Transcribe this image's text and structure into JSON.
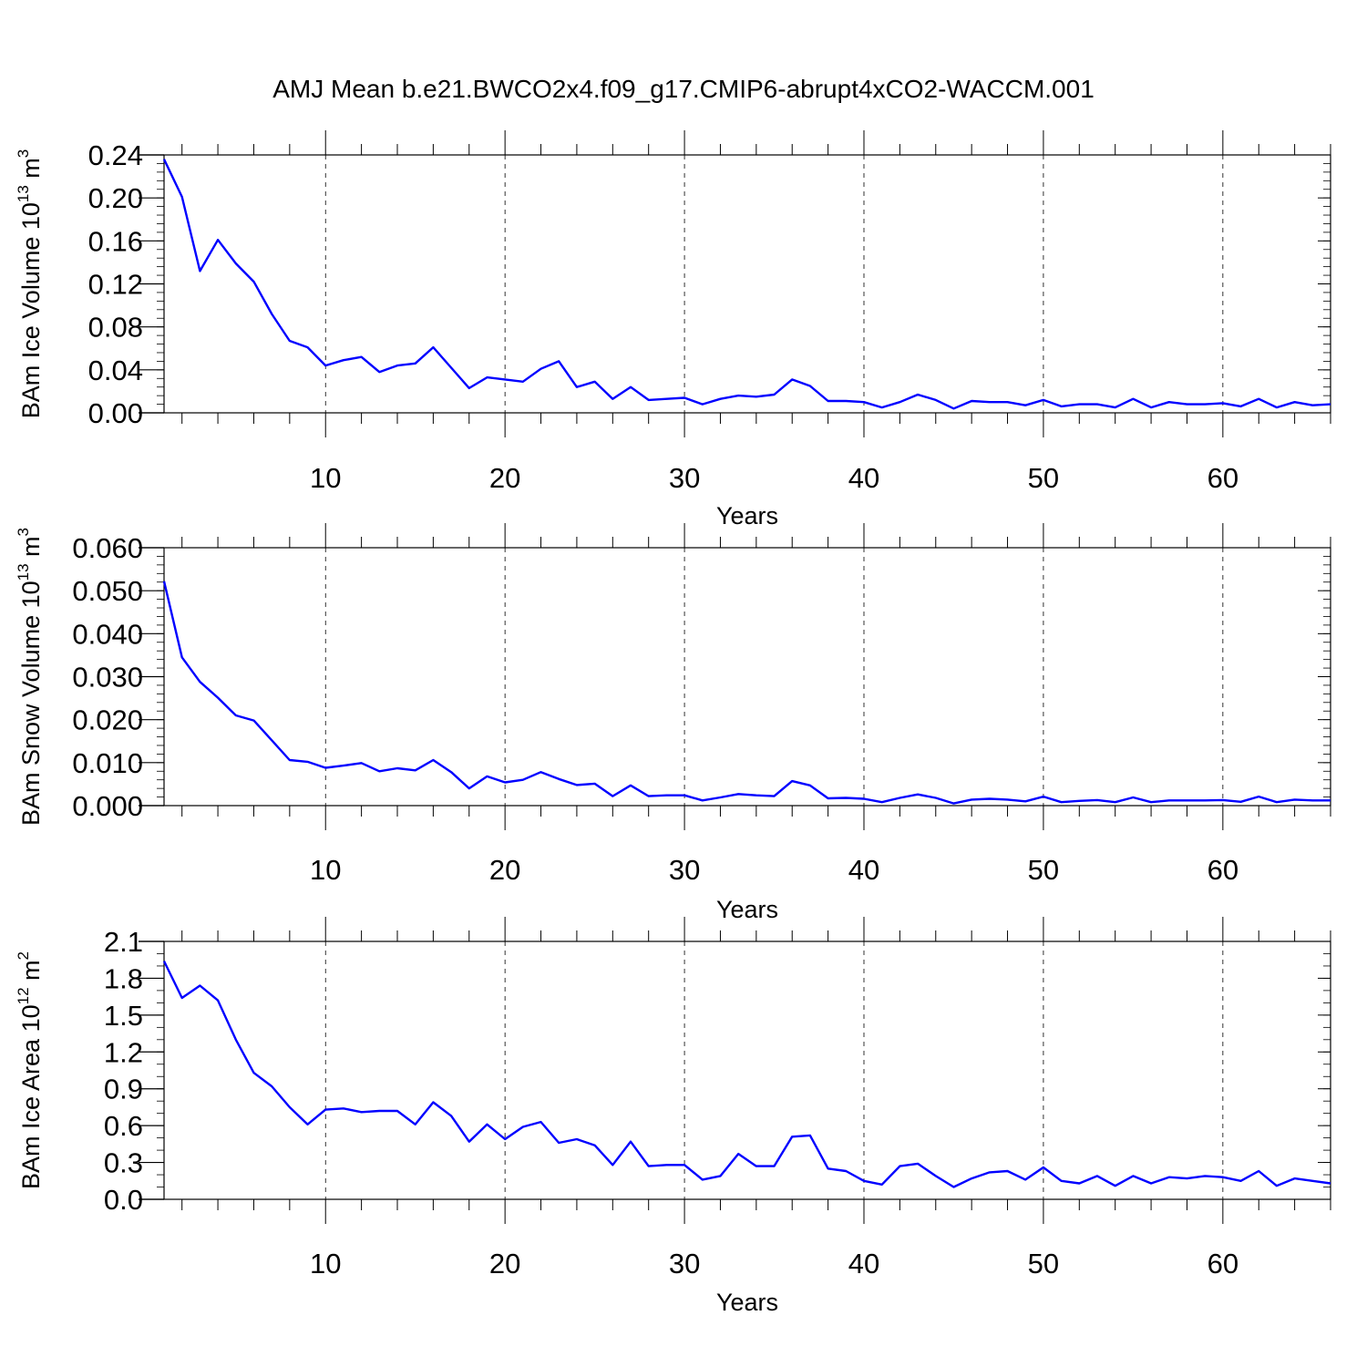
{
  "title": "AMJ Mean b.e21.BWCO2x4.f09_g17.CMIP6-abrupt4xCO2-WACCM.001",
  "chart_data": [
    {
      "type": "line",
      "title": "AMJ Mean b.e21.BWCO2x4.f09_g17.CMIP6-abrupt4xCO2-WACCM.001",
      "xlabel": "Years",
      "ylabel": {
        "prefix": "BAm Ice Volume 10",
        "exp": "13",
        "unit": " m",
        "unit_exp": "3"
      },
      "xlim": [
        1,
        66
      ],
      "ylim": [
        0,
        0.24
      ],
      "x_major_ticks": [
        10,
        20,
        30,
        40,
        50,
        60
      ],
      "x_tick_labels": [
        "10",
        "20",
        "30",
        "40",
        "50",
        "60"
      ],
      "y_ticks": [
        0,
        0.04,
        0.08,
        0.12,
        0.16,
        0.2,
        0.24
      ],
      "y_tick_labels": [
        "0.00",
        "0.04",
        "0.08",
        "0.12",
        "0.16",
        "0.20",
        "0.24"
      ],
      "y_minor_step": 0.008,
      "color": "#0000ff",
      "series": [
        {
          "name": "BAm Ice Volume",
          "values": [
            0.236,
            0.201,
            0.132,
            0.161,
            0.139,
            0.122,
            0.092,
            0.067,
            0.061,
            0.044,
            0.049,
            0.052,
            0.038,
            0.044,
            0.046,
            0.061,
            0.042,
            0.023,
            0.033,
            0.031,
            0.029,
            0.041,
            0.048,
            0.024,
            0.029,
            0.013,
            0.024,
            0.012,
            0.013,
            0.014,
            0.008,
            0.013,
            0.016,
            0.015,
            0.017,
            0.031,
            0.025,
            0.011,
            0.011,
            0.01,
            0.005,
            0.01,
            0.017,
            0.012,
            0.004,
            0.011,
            0.01,
            0.01,
            0.007,
            0.012,
            0.006,
            0.008,
            0.008,
            0.005,
            0.013,
            0.005,
            0.01,
            0.008,
            0.008,
            0.009,
            0.006,
            0.013,
            0.005,
            0.01,
            0.007,
            0.008
          ]
        }
      ]
    },
    {
      "type": "line",
      "xlabel": "Years",
      "ylabel": {
        "prefix": "BAm Snow Volume 10",
        "exp": "13",
        "unit": " m",
        "unit_exp": "3"
      },
      "xlim": [
        1,
        66
      ],
      "ylim": [
        0,
        0.06
      ],
      "x_major_ticks": [
        10,
        20,
        30,
        40,
        50,
        60
      ],
      "x_tick_labels": [
        "10",
        "20",
        "30",
        "40",
        "50",
        "60"
      ],
      "y_ticks": [
        0,
        0.01,
        0.02,
        0.03,
        0.04,
        0.05,
        0.06
      ],
      "y_tick_labels": [
        "0.000",
        "0.010",
        "0.020",
        "0.030",
        "0.040",
        "0.050",
        "0.060"
      ],
      "y_minor_step": 0.002,
      "color": "#0000ff",
      "series": [
        {
          "name": "BAm Snow Volume",
          "values": [
            0.0522,
            0.0345,
            0.0288,
            0.0251,
            0.021,
            0.0198,
            0.0152,
            0.0106,
            0.0102,
            0.0088,
            0.0093,
            0.0099,
            0.008,
            0.0087,
            0.0082,
            0.0106,
            0.0078,
            0.004,
            0.0068,
            0.0054,
            0.006,
            0.0078,
            0.0062,
            0.0048,
            0.0051,
            0.0022,
            0.0047,
            0.0022,
            0.0024,
            0.0024,
            0.0012,
            0.0019,
            0.0027,
            0.0024,
            0.0022,
            0.0057,
            0.0047,
            0.0017,
            0.0018,
            0.0016,
            0.0008,
            0.0018,
            0.0026,
            0.0018,
            0.0005,
            0.0014,
            0.0016,
            0.0014,
            0.001,
            0.0021,
            0.0008,
            0.0011,
            0.0013,
            0.0008,
            0.0019,
            0.0008,
            0.0012,
            0.0012,
            0.0012,
            0.0013,
            0.0009,
            0.0021,
            0.0008,
            0.0014,
            0.0012,
            0.0012
          ]
        }
      ]
    },
    {
      "type": "line",
      "xlabel": "Years",
      "ylabel": {
        "prefix": "BAm Ice Area 10",
        "exp": "12",
        "unit": " m",
        "unit_exp": "2"
      },
      "xlim": [
        1,
        66
      ],
      "ylim": [
        0,
        2.1
      ],
      "x_major_ticks": [
        10,
        20,
        30,
        40,
        50,
        60
      ],
      "x_tick_labels": [
        "10",
        "20",
        "30",
        "40",
        "50",
        "60"
      ],
      "y_ticks": [
        0,
        0.3,
        0.6,
        0.9,
        1.2,
        1.5,
        1.8,
        2.1
      ],
      "y_tick_labels": [
        "0.0",
        "0.3",
        "0.6",
        "0.9",
        "1.2",
        "1.5",
        "1.8",
        "2.1"
      ],
      "y_minor_step": 0.1,
      "color": "#0000ff",
      "series": [
        {
          "name": "BAm Ice Area",
          "values": [
            1.94,
            1.64,
            1.74,
            1.62,
            1.3,
            1.03,
            0.92,
            0.75,
            0.61,
            0.73,
            0.74,
            0.71,
            0.72,
            0.72,
            0.61,
            0.79,
            0.68,
            0.47,
            0.61,
            0.49,
            0.59,
            0.63,
            0.46,
            0.49,
            0.44,
            0.28,
            0.47,
            0.27,
            0.28,
            0.28,
            0.16,
            0.19,
            0.37,
            0.27,
            0.27,
            0.51,
            0.52,
            0.25,
            0.23,
            0.15,
            0.12,
            0.27,
            0.29,
            0.19,
            0.1,
            0.17,
            0.22,
            0.23,
            0.16,
            0.26,
            0.15,
            0.13,
            0.19,
            0.11,
            0.19,
            0.13,
            0.18,
            0.17,
            0.19,
            0.18,
            0.15,
            0.23,
            0.11,
            0.17,
            0.15,
            0.13
          ]
        }
      ]
    }
  ]
}
